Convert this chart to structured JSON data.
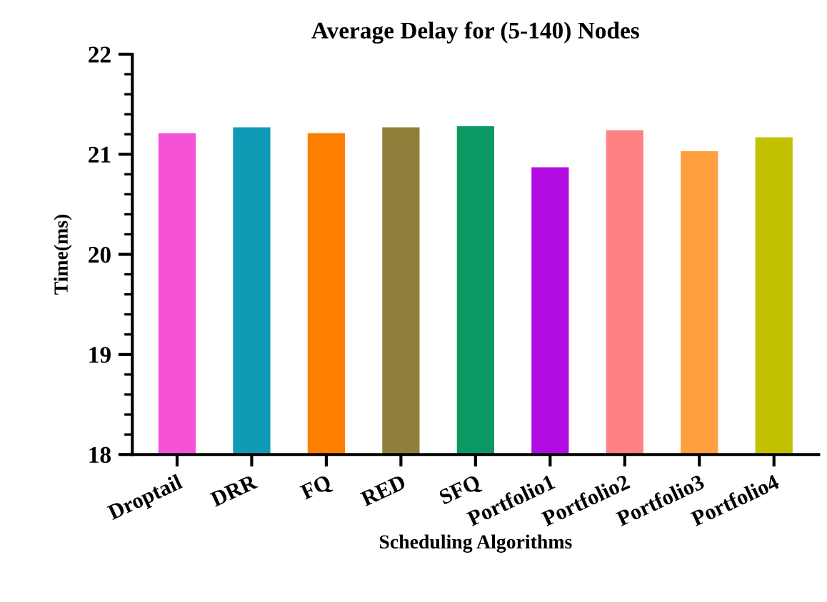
{
  "chart_data": {
    "type": "bar",
    "title": "Average Delay for (5-140) Nodes",
    "xlabel": "Scheduling Algorithms",
    "ylabel": "Time(ms)",
    "categories": [
      "Droptail",
      "DRR",
      "FQ",
      "RED",
      "SFQ",
      "Portfolio1",
      "Portfolio2",
      "Portfolio3",
      "Portfolio4"
    ],
    "values": [
      21.21,
      21.27,
      21.21,
      21.27,
      21.28,
      20.87,
      21.24,
      21.03,
      21.17
    ],
    "colors": [
      "#f652d8",
      "#119ab5",
      "#ff7f00",
      "#8f7f3a",
      "#0a9863",
      "#b10be1",
      "#ff8282",
      "#ff9f40",
      "#c2c100"
    ],
    "ylim": [
      18,
      22
    ],
    "yticks": [
      18,
      19,
      20,
      21,
      22
    ],
    "grid": false,
    "legend": false
  }
}
